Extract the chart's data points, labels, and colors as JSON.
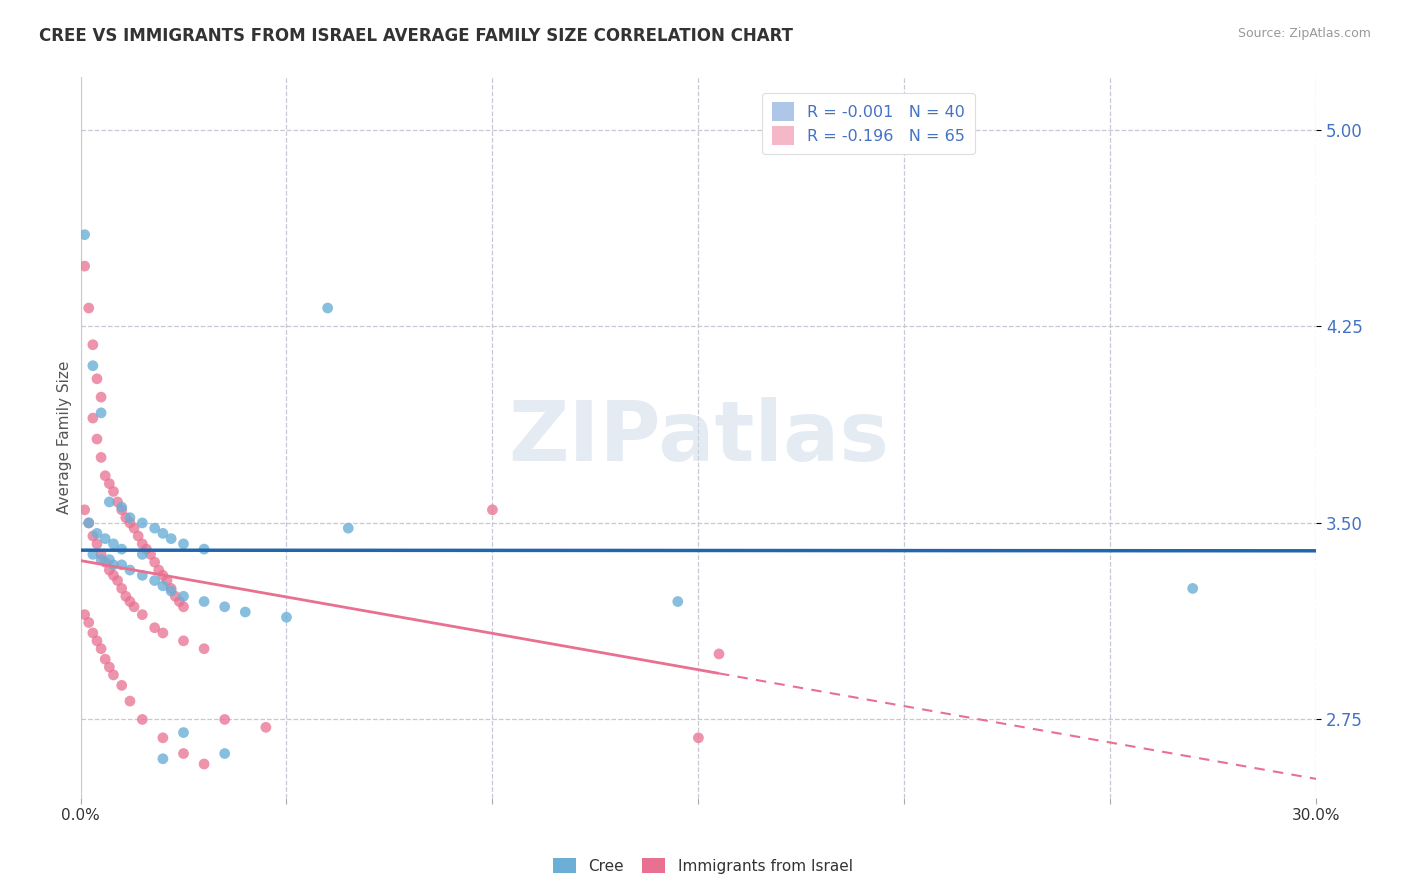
{
  "title": "CREE VS IMMIGRANTS FROM ISRAEL AVERAGE FAMILY SIZE CORRELATION CHART",
  "source_text": "Source: ZipAtlas.com",
  "ylabel": "Average Family Size",
  "xlim": [
    0.0,
    0.3
  ],
  "ylim": [
    2.45,
    5.2
  ],
  "yticks": [
    2.75,
    3.5,
    4.25,
    5.0
  ],
  "ytick_labels": [
    "2.75",
    "3.50",
    "4.25",
    "5.00"
  ],
  "xticks": [
    0.0,
    0.05,
    0.1,
    0.15,
    0.2,
    0.25,
    0.3
  ],
  "watermark": "ZIPatlas",
  "cree_color": "#6baed6",
  "israel_color": "#e87090",
  "cree_line_color": "#2166ac",
  "israel_line_color": "#e87090",
  "background_color": "#ffffff",
  "grid_color": "#c8c8d4",
  "cree_points": [
    [
      0.001,
      4.6
    ],
    [
      0.003,
      4.1
    ],
    [
      0.005,
      3.92
    ],
    [
      0.007,
      3.58
    ],
    [
      0.01,
      3.56
    ],
    [
      0.012,
      3.52
    ],
    [
      0.015,
      3.5
    ],
    [
      0.018,
      3.48
    ],
    [
      0.02,
      3.46
    ],
    [
      0.022,
      3.44
    ],
    [
      0.025,
      3.42
    ],
    [
      0.03,
      3.4
    ],
    [
      0.003,
      3.38
    ],
    [
      0.005,
      3.36
    ],
    [
      0.007,
      3.36
    ],
    [
      0.008,
      3.34
    ],
    [
      0.01,
      3.34
    ],
    [
      0.012,
      3.32
    ],
    [
      0.015,
      3.3
    ],
    [
      0.018,
      3.28
    ],
    [
      0.02,
      3.26
    ],
    [
      0.022,
      3.24
    ],
    [
      0.025,
      3.22
    ],
    [
      0.03,
      3.2
    ],
    [
      0.035,
      3.18
    ],
    [
      0.04,
      3.16
    ],
    [
      0.05,
      3.14
    ],
    [
      0.06,
      4.32
    ],
    [
      0.065,
      3.48
    ],
    [
      0.002,
      3.5
    ],
    [
      0.004,
      3.46
    ],
    [
      0.006,
      3.44
    ],
    [
      0.008,
      3.42
    ],
    [
      0.01,
      3.4
    ],
    [
      0.015,
      3.38
    ],
    [
      0.025,
      2.7
    ],
    [
      0.035,
      2.62
    ],
    [
      0.27,
      3.25
    ],
    [
      0.145,
      3.2
    ],
    [
      0.02,
      2.6
    ]
  ],
  "israel_points": [
    [
      0.001,
      4.48
    ],
    [
      0.002,
      4.32
    ],
    [
      0.003,
      4.18
    ],
    [
      0.004,
      4.05
    ],
    [
      0.005,
      3.98
    ],
    [
      0.003,
      3.9
    ],
    [
      0.004,
      3.82
    ],
    [
      0.005,
      3.75
    ],
    [
      0.006,
      3.68
    ],
    [
      0.007,
      3.65
    ],
    [
      0.008,
      3.62
    ],
    [
      0.009,
      3.58
    ],
    [
      0.01,
      3.55
    ],
    [
      0.011,
      3.52
    ],
    [
      0.012,
      3.5
    ],
    [
      0.013,
      3.48
    ],
    [
      0.014,
      3.45
    ],
    [
      0.015,
      3.42
    ],
    [
      0.016,
      3.4
    ],
    [
      0.017,
      3.38
    ],
    [
      0.018,
      3.35
    ],
    [
      0.019,
      3.32
    ],
    [
      0.02,
      3.3
    ],
    [
      0.021,
      3.28
    ],
    [
      0.022,
      3.25
    ],
    [
      0.023,
      3.22
    ],
    [
      0.024,
      3.2
    ],
    [
      0.025,
      3.18
    ],
    [
      0.001,
      3.55
    ],
    [
      0.002,
      3.5
    ],
    [
      0.003,
      3.45
    ],
    [
      0.004,
      3.42
    ],
    [
      0.005,
      3.38
    ],
    [
      0.006,
      3.35
    ],
    [
      0.007,
      3.32
    ],
    [
      0.008,
      3.3
    ],
    [
      0.009,
      3.28
    ],
    [
      0.01,
      3.25
    ],
    [
      0.011,
      3.22
    ],
    [
      0.012,
      3.2
    ],
    [
      0.013,
      3.18
    ],
    [
      0.015,
      3.15
    ],
    [
      0.018,
      3.1
    ],
    [
      0.02,
      3.08
    ],
    [
      0.025,
      3.05
    ],
    [
      0.03,
      3.02
    ],
    [
      0.001,
      3.15
    ],
    [
      0.002,
      3.12
    ],
    [
      0.003,
      3.08
    ],
    [
      0.004,
      3.05
    ],
    [
      0.005,
      3.02
    ],
    [
      0.006,
      2.98
    ],
    [
      0.007,
      2.95
    ],
    [
      0.008,
      2.92
    ],
    [
      0.01,
      2.88
    ],
    [
      0.012,
      2.82
    ],
    [
      0.015,
      2.75
    ],
    [
      0.02,
      2.68
    ],
    [
      0.025,
      2.62
    ],
    [
      0.03,
      2.58
    ],
    [
      0.035,
      2.75
    ],
    [
      0.045,
      2.72
    ],
    [
      0.1,
      3.55
    ],
    [
      0.155,
      3.0
    ],
    [
      0.15,
      2.68
    ]
  ],
  "legend_items": [
    {
      "label": "R = -0.001   N = 40",
      "facecolor": "#aec6e8"
    },
    {
      "label": "R = -0.196   N = 65",
      "facecolor": "#f4b8c8"
    }
  ]
}
